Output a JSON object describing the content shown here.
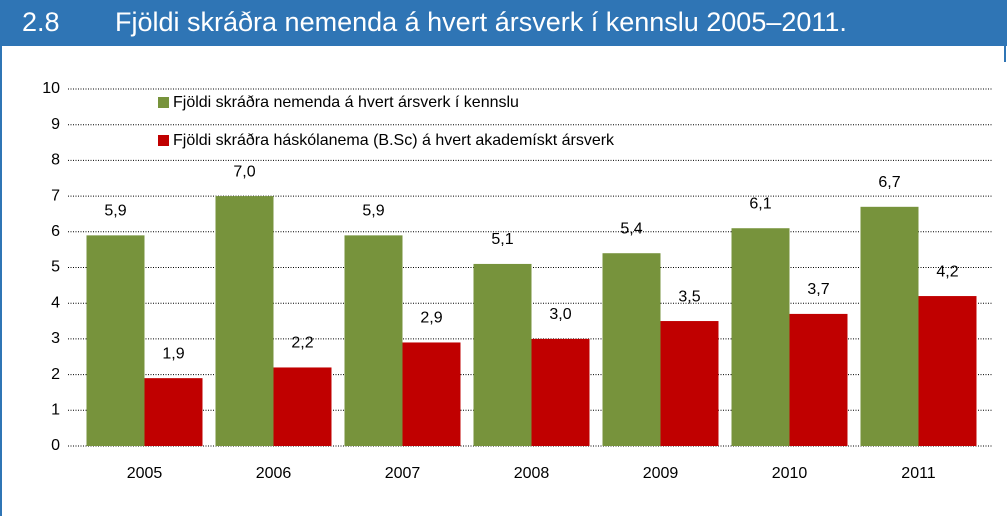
{
  "chart_data": {
    "type": "bar",
    "figure_number": "2.8",
    "title": "Fjöldi skráðra nemenda á hvert ársverk í kennslu 2005–2011.",
    "categories": [
      "2005",
      "2006",
      "2007",
      "2008",
      "2009",
      "2010",
      "2011"
    ],
    "series": [
      {
        "name": "Fjöldi skráðra nemenda á hvert ársverk í kennslu",
        "color": "#77933c",
        "values": [
          5.9,
          7.0,
          5.9,
          5.1,
          5.4,
          6.1,
          6.7
        ],
        "value_labels": [
          "5,9",
          "7,0",
          "5,9",
          "5,1",
          "5,4",
          "6,1",
          "6,7"
        ]
      },
      {
        "name": "Fjöldi skráðra háskólanema (B.Sc) á hvert akademískt ársverk",
        "color": "#c00000",
        "values": [
          1.9,
          2.2,
          2.9,
          3.0,
          3.5,
          3.7,
          4.2
        ],
        "value_labels": [
          "1,9",
          "2,2",
          "2,9",
          "3,0",
          "3,5",
          "3,7",
          "4,2"
        ]
      }
    ],
    "ylim": [
      0,
      10
    ],
    "yticks": [
      0,
      1,
      2,
      3,
      4,
      5,
      6,
      7,
      8,
      9,
      10
    ],
    "grid": true,
    "legend": "top-left"
  }
}
